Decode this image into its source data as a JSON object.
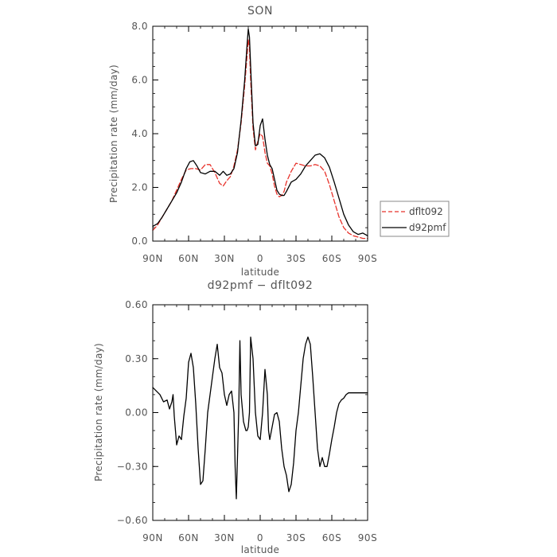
{
  "chart_data": [
    {
      "type": "line",
      "title": "SON",
      "xlabel": "latitude",
      "ylabel": "Precipitation rate (mm/day)",
      "xlim": [
        90,
        -90
      ],
      "ylim": [
        0,
        8
      ],
      "xticks": [
        90,
        60,
        30,
        0,
        -30,
        -60,
        -90
      ],
      "xtick_labels": [
        "90N",
        "60N",
        "30N",
        "0",
        "30S",
        "60S",
        "90S"
      ],
      "yticks": [
        0,
        2,
        4,
        6,
        8
      ],
      "ytick_labels": [
        "0.0",
        "2.0",
        "4.0",
        "6.0",
        "8.0"
      ],
      "legend": "right",
      "grid": false,
      "series": [
        {
          "name": "dflt092",
          "color": "#e8322b",
          "dash": "dashed",
          "x": [
            90,
            86,
            82,
            78,
            74,
            70,
            66,
            62,
            58,
            54,
            50,
            46,
            42,
            38,
            34,
            31,
            28,
            25,
            22,
            19,
            16,
            13,
            11,
            10,
            9,
            8,
            6,
            4,
            2,
            0,
            -2,
            -4,
            -6,
            -8,
            -10,
            -12,
            -14,
            -16,
            -18,
            -20,
            -22,
            -26,
            -30,
            -34,
            -38,
            -42,
            -46,
            -50,
            -54,
            -58,
            -62,
            -66,
            -70,
            -74,
            -78,
            -82,
            -86,
            -90
          ],
          "values": [
            0.4,
            0.6,
            0.9,
            1.2,
            1.5,
            1.9,
            2.3,
            2.65,
            2.7,
            2.7,
            2.65,
            2.85,
            2.85,
            2.55,
            2.15,
            2.05,
            2.25,
            2.4,
            2.8,
            3.4,
            4.4,
            5.8,
            6.9,
            7.5,
            7.2,
            6.0,
            4.2,
            3.4,
            3.7,
            4.0,
            3.9,
            3.3,
            2.9,
            2.8,
            2.5,
            2.05,
            1.75,
            1.65,
            1.7,
            1.85,
            2.2,
            2.6,
            2.9,
            2.85,
            2.8,
            2.8,
            2.85,
            2.8,
            2.6,
            2.1,
            1.5,
            0.9,
            0.5,
            0.3,
            0.2,
            0.15,
            0.1,
            0.1
          ]
        },
        {
          "name": "d92pmf",
          "color": "#000000",
          "dash": "solid",
          "x": [
            90,
            86,
            82,
            78,
            74,
            70,
            66,
            62,
            59,
            56,
            53,
            50,
            46,
            42,
            38,
            34,
            31,
            28,
            25,
            22,
            19,
            16,
            13,
            11,
            10,
            9,
            8,
            6,
            4,
            2,
            0,
            -2,
            -4,
            -6,
            -8,
            -10,
            -12,
            -14,
            -16,
            -18,
            -20,
            -22,
            -26,
            -30,
            -34,
            -38,
            -42,
            -46,
            -50,
            -54,
            -58,
            -62,
            -66,
            -70,
            -74,
            -78,
            -82,
            -86,
            -90
          ],
          "values": [
            0.55,
            0.65,
            0.9,
            1.2,
            1.5,
            1.8,
            2.2,
            2.7,
            2.95,
            3.0,
            2.8,
            2.55,
            2.5,
            2.6,
            2.6,
            2.45,
            2.6,
            2.45,
            2.5,
            2.7,
            3.3,
            4.5,
            6.0,
            7.3,
            7.9,
            7.6,
            6.5,
            4.4,
            3.55,
            3.6,
            4.3,
            4.55,
            3.8,
            3.2,
            2.85,
            2.7,
            2.3,
            1.9,
            1.75,
            1.7,
            1.7,
            1.85,
            2.2,
            2.3,
            2.5,
            2.8,
            3.0,
            3.2,
            3.25,
            3.1,
            2.75,
            2.2,
            1.6,
            1.0,
            0.6,
            0.35,
            0.25,
            0.3,
            0.2
          ]
        }
      ]
    },
    {
      "type": "line",
      "title": "d92pmf − dflt092",
      "xlabel": "latitude",
      "ylabel": "Precipitation rate (mm/day)",
      "xlim": [
        90,
        -90
      ],
      "ylim": [
        -0.6,
        0.6
      ],
      "xticks": [
        90,
        60,
        30,
        0,
        -30,
        -60,
        -90
      ],
      "xtick_labels": [
        "90N",
        "60N",
        "30N",
        "0",
        "30S",
        "60S",
        "90S"
      ],
      "yticks": [
        -0.6,
        -0.3,
        0,
        0.3,
        0.6
      ],
      "ytick_labels": [
        "−0.60",
        "−0.30",
        "0.00",
        "0.30",
        "0.60"
      ],
      "grid": false,
      "series": [
        {
          "color": "#000000",
          "dash": "solid",
          "x": [
            90,
            87,
            84,
            81,
            78,
            76,
            74,
            73,
            72,
            70,
            68,
            66,
            64,
            62,
            60,
            58,
            56,
            54,
            52,
            50,
            48,
            46,
            44,
            42,
            40,
            38,
            36,
            34,
            32,
            30,
            28,
            26,
            24,
            22,
            21,
            20,
            18,
            17,
            16,
            14,
            12,
            11,
            10,
            9,
            8,
            6,
            4,
            2,
            0,
            -2,
            -4,
            -6,
            -7,
            -8,
            -10,
            -12,
            -14,
            -16,
            -18,
            -20,
            -22,
            -24,
            -26,
            -28,
            -30,
            -32,
            -34,
            -36,
            -38,
            -40,
            -42,
            -44,
            -46,
            -48,
            -50,
            -52,
            -54,
            -56,
            -58,
            -60,
            -62,
            -64,
            -66,
            -68,
            -70,
            -72,
            -74,
            -76,
            -78,
            -80,
            -82,
            -84,
            -86,
            -88,
            -90
          ],
          "values": [
            0.14,
            0.12,
            0.1,
            0.06,
            0.07,
            0.02,
            0.06,
            0.1,
            -0.02,
            -0.18,
            -0.13,
            -0.15,
            -0.02,
            0.08,
            0.28,
            0.33,
            0.25,
            0.05,
            -0.2,
            -0.4,
            -0.38,
            -0.2,
            0.0,
            0.1,
            0.2,
            0.3,
            0.38,
            0.25,
            0.22,
            0.1,
            0.04,
            0.1,
            0.12,
            0.0,
            -0.3,
            -0.48,
            0.0,
            0.4,
            0.1,
            -0.05,
            -0.1,
            -0.1,
            -0.08,
            0.0,
            0.42,
            0.3,
            0.0,
            -0.13,
            -0.15,
            0.0,
            0.24,
            0.1,
            -0.1,
            -0.15,
            -0.08,
            -0.01,
            0.0,
            -0.05,
            -0.2,
            -0.3,
            -0.35,
            -0.44,
            -0.4,
            -0.28,
            -0.1,
            0.0,
            0.15,
            0.3,
            0.38,
            0.42,
            0.38,
            0.2,
            0.0,
            -0.2,
            -0.3,
            -0.25,
            -0.3,
            -0.3,
            -0.23,
            -0.15,
            -0.08,
            0.0,
            0.05,
            0.07,
            0.08,
            0.1,
            0.11,
            0.11,
            0.11,
            0.11,
            0.11,
            0.11,
            0.11,
            0.11,
            0.11
          ]
        }
      ]
    }
  ]
}
